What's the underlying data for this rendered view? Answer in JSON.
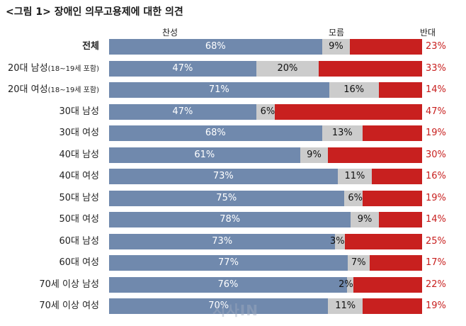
{
  "title": "<그림 1> 장애인 의무고용제에 대한 의견",
  "watermark": "시사IN",
  "chart_data": {
    "type": "bar",
    "stacked": true,
    "orientation": "horizontal",
    "legend": [
      "찬성",
      "모름",
      "반대"
    ],
    "colors": {
      "찬성": "#7089ad",
      "모름": "#cccccc",
      "반대": "#c8201f"
    },
    "rows": [
      {
        "label": "전체",
        "sub": "",
        "values": [
          68,
          9,
          23
        ]
      },
      {
        "label": "20대 남성",
        "sub": "(18~19세 포함)",
        "values": [
          47,
          20,
          33
        ]
      },
      {
        "label": "20대 여성",
        "sub": "(18~19세 포함)",
        "values": [
          71,
          16,
          14
        ]
      },
      {
        "label": "30대 남성",
        "sub": "",
        "values": [
          47,
          6,
          47
        ]
      },
      {
        "label": "30대 여성",
        "sub": "",
        "values": [
          68,
          13,
          19
        ]
      },
      {
        "label": "40대 남성",
        "sub": "",
        "values": [
          61,
          9,
          30
        ]
      },
      {
        "label": "40대 여성",
        "sub": "",
        "values": [
          73,
          11,
          16
        ]
      },
      {
        "label": "50대 남성",
        "sub": "",
        "values": [
          75,
          6,
          19
        ]
      },
      {
        "label": "50대 여성",
        "sub": "",
        "values": [
          78,
          9,
          14
        ]
      },
      {
        "label": "60대 남성",
        "sub": "",
        "values": [
          73,
          3,
          25
        ]
      },
      {
        "label": "60대 여성",
        "sub": "",
        "values": [
          77,
          7,
          17
        ]
      },
      {
        "label": "70세 이상 남성",
        "sub": "",
        "values": [
          76,
          2,
          22
        ]
      },
      {
        "label": "70세 이상 여성",
        "sub": "",
        "values": [
          70,
          11,
          19
        ]
      }
    ]
  }
}
